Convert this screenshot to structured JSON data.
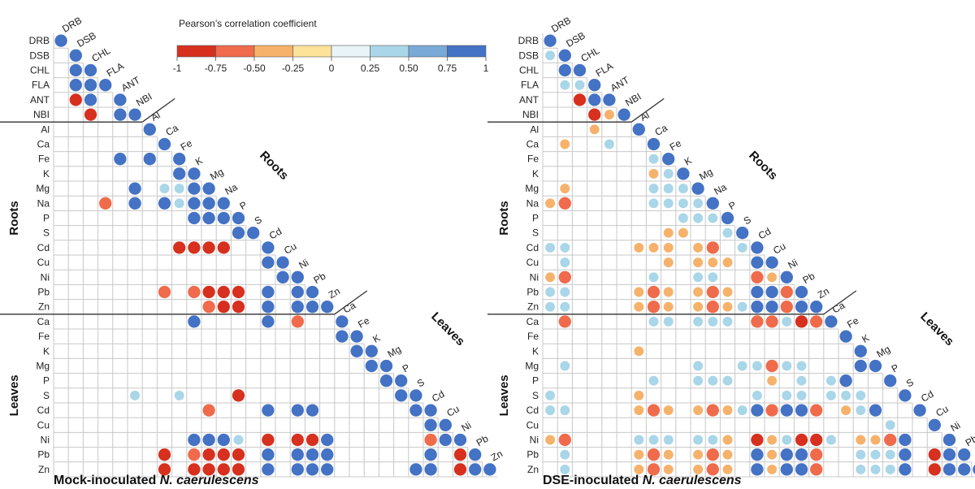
{
  "legend": {
    "title": "Pearson’s correlation coefficient",
    "ticks": [
      "-1",
      "-0.75",
      "-0.50",
      "-0.25",
      "0",
      "0.25",
      "0.50",
      "0.75",
      "1"
    ],
    "colors": [
      "#d7301f",
      "#ef6b4b",
      "#f6b26b",
      "#fde29a",
      "#e9f4f8",
      "#a9d6e8",
      "#79a9d6",
      "#4472c4"
    ]
  },
  "chart_data": [
    {
      "type": "heatmap",
      "caption": "Mock-inoculated N. caerulescens",
      "caption_plain": "Mock-inoculated ",
      "caption_italic": "N. caerulescens",
      "variables": [
        "DRB",
        "DSB",
        "CHL",
        "FLA",
        "ANT",
        "NBI",
        "Al",
        "Ca",
        "Fe",
        "K",
        "Mg",
        "Na",
        "P",
        "S",
        "Cd",
        "Cu",
        "Ni",
        "Pb",
        "Zn",
        "Ca",
        "Fe",
        "K",
        "Mg",
        "P",
        "S",
        "Cd",
        "Cu",
        "Ni",
        "Pb",
        "Zn"
      ],
      "groups": [
        "Roots",
        "Roots",
        "Leaves",
        "Leaves"
      ],
      "circles": [
        [
          2,
          1,
          0.9
        ],
        [
          3,
          1,
          0.9
        ],
        [
          3,
          2,
          0.9
        ],
        [
          4,
          1,
          -0.9
        ],
        [
          4,
          2,
          0.9
        ],
        [
          5,
          2,
          -0.9
        ],
        [
          5,
          4,
          0.9
        ],
        [
          8,
          4,
          0.9
        ],
        [
          8,
          6,
          0.9
        ],
        [
          9,
          8,
          0.9
        ],
        [
          10,
          5,
          0.85
        ],
        [
          10,
          7,
          0.4
        ],
        [
          10,
          8,
          0.45
        ],
        [
          10,
          9,
          0.85
        ],
        [
          11,
          3,
          -0.6
        ],
        [
          11,
          5,
          0.85
        ],
        [
          11,
          7,
          0.85
        ],
        [
          11,
          8,
          0.4
        ],
        [
          11,
          9,
          0.85
        ],
        [
          11,
          10,
          0.85
        ],
        [
          12,
          9,
          0.85
        ],
        [
          12,
          10,
          0.85
        ],
        [
          12,
          11,
          0.85
        ],
        [
          13,
          12,
          0.85
        ],
        [
          14,
          8,
          -0.9
        ],
        [
          14,
          9,
          -0.9
        ],
        [
          14,
          10,
          -0.9
        ],
        [
          14,
          11,
          -0.9
        ],
        [
          15,
          14,
          0.85
        ],
        [
          16,
          15,
          0.85
        ],
        [
          17,
          7,
          -0.6
        ],
        [
          17,
          9,
          -0.6
        ],
        [
          17,
          10,
          -0.9
        ],
        [
          17,
          11,
          -0.9
        ],
        [
          17,
          12,
          -0.9
        ],
        [
          17,
          14,
          0.85
        ],
        [
          17,
          16,
          0.85
        ],
        [
          18,
          10,
          -0.6
        ],
        [
          18,
          11,
          -0.9
        ],
        [
          18,
          12,
          -0.9
        ],
        [
          18,
          14,
          0.85
        ],
        [
          18,
          16,
          0.85
        ],
        [
          18,
          17,
          0.85
        ],
        [
          19,
          9,
          0.85
        ],
        [
          19,
          14,
          0.85
        ],
        [
          19,
          16,
          -0.6
        ],
        [
          20,
          19,
          0.85
        ],
        [
          21,
          20,
          0.85
        ],
        [
          22,
          21,
          0.85
        ],
        [
          23,
          22,
          0.85
        ],
        [
          24,
          5,
          0.3
        ],
        [
          24,
          8,
          0.3
        ],
        [
          24,
          12,
          -0.9
        ],
        [
          24,
          23,
          0.85
        ],
        [
          25,
          10,
          -0.6
        ],
        [
          25,
          14,
          0.85
        ],
        [
          25,
          16,
          0.85
        ],
        [
          25,
          17,
          0.85
        ],
        [
          25,
          24,
          0.85
        ],
        [
          26,
          25,
          0.85
        ],
        [
          27,
          9,
          0.85
        ],
        [
          27,
          10,
          0.85
        ],
        [
          27,
          11,
          0.85
        ],
        [
          27,
          12,
          0.45
        ],
        [
          27,
          14,
          -0.9
        ],
        [
          27,
          16,
          -0.9
        ],
        [
          27,
          17,
          -0.9
        ],
        [
          27,
          18,
          0.85
        ],
        [
          27,
          25,
          -0.6
        ],
        [
          27,
          26,
          0.85
        ],
        [
          28,
          7,
          -0.9
        ],
        [
          28,
          9,
          -0.6
        ],
        [
          28,
          10,
          -0.9
        ],
        [
          28,
          11,
          -0.9
        ],
        [
          28,
          12,
          -0.9
        ],
        [
          28,
          14,
          0.85
        ],
        [
          28,
          16,
          0.85
        ],
        [
          28,
          17,
          0.85
        ],
        [
          28,
          18,
          0.85
        ],
        [
          28,
          25,
          0.85
        ],
        [
          28,
          27,
          -0.9
        ],
        [
          29,
          7,
          -0.9
        ],
        [
          29,
          9,
          -0.9
        ],
        [
          29,
          10,
          -0.9
        ],
        [
          29,
          11,
          -0.9
        ],
        [
          29,
          12,
          -0.9
        ],
        [
          29,
          14,
          0.85
        ],
        [
          29,
          16,
          0.85
        ],
        [
          29,
          17,
          0.85
        ],
        [
          29,
          18,
          0.85
        ],
        [
          29,
          24,
          0.85
        ],
        [
          29,
          25,
          0.85
        ],
        [
          29,
          27,
          -0.9
        ],
        [
          29,
          28,
          0.85
        ]
      ]
    },
    {
      "type": "heatmap",
      "caption": "DSE-inoculated N. caerulescens",
      "caption_plain": "DSE-inoculated ",
      "caption_italic": "N. caerulescens",
      "variables": [
        "DRB",
        "DSB",
        "CHL",
        "FLA",
        "ANT",
        "NBI",
        "Al",
        "Ca",
        "Fe",
        "K",
        "Mg",
        "Na",
        "P",
        "S",
        "Cd",
        "Cu",
        "Ni",
        "Pb",
        "Zn",
        "Ca",
        "Fe",
        "K",
        "Mg",
        "P",
        "S",
        "Cd",
        "Cu",
        "Ni",
        "Pb",
        "Zn"
      ],
      "groups": [
        "Roots",
        "Roots",
        "Leaves",
        "Leaves"
      ],
      "circles": [
        [
          1,
          0,
          0.3
        ],
        [
          2,
          1,
          0.85
        ],
        [
          3,
          1,
          0.3
        ],
        [
          3,
          2,
          0.3
        ],
        [
          4,
          2,
          -0.9
        ],
        [
          4,
          3,
          0.85
        ],
        [
          5,
          3,
          -0.9
        ],
        [
          5,
          4,
          -0.35
        ],
        [
          6,
          3,
          -0.35
        ],
        [
          7,
          1,
          -0.35
        ],
        [
          7,
          4,
          0.3
        ],
        [
          8,
          7,
          0.45
        ],
        [
          9,
          7,
          -0.35
        ],
        [
          9,
          8,
          0.45
        ],
        [
          10,
          1,
          -0.35
        ],
        [
          10,
          7,
          0.3
        ],
        [
          10,
          8,
          0.3
        ],
        [
          10,
          9,
          0.3
        ],
        [
          11,
          0,
          -0.35
        ],
        [
          11,
          1,
          -0.6
        ],
        [
          11,
          7,
          0.45
        ],
        [
          11,
          8,
          0.3
        ],
        [
          11,
          9,
          0.3
        ],
        [
          11,
          10,
          0.45
        ],
        [
          12,
          9,
          0.45
        ],
        [
          12,
          10,
          0.3
        ],
        [
          12,
          11,
          0.45
        ],
        [
          13,
          8,
          -0.35
        ],
        [
          13,
          9,
          -0.35
        ],
        [
          13,
          12,
          0.3
        ],
        [
          14,
          0,
          0.45
        ],
        [
          14,
          1,
          0.45
        ],
        [
          14,
          6,
          -0.35
        ],
        [
          14,
          7,
          -0.35
        ],
        [
          14,
          8,
          -0.35
        ],
        [
          14,
          10,
          -0.35
        ],
        [
          14,
          11,
          -0.6
        ],
        [
          14,
          13,
          0.3
        ],
        [
          15,
          1,
          0.3
        ],
        [
          15,
          8,
          -0.35
        ],
        [
          15,
          10,
          -0.35
        ],
        [
          15,
          11,
          -0.35
        ],
        [
          15,
          12,
          -0.35
        ],
        [
          15,
          14,
          0.85
        ],
        [
          16,
          0,
          -0.35
        ],
        [
          16,
          1,
          -0.6
        ],
        [
          16,
          7,
          0.3
        ],
        [
          16,
          10,
          0.3
        ],
        [
          16,
          11,
          0.3
        ],
        [
          16,
          14,
          -0.6
        ],
        [
          16,
          15,
          -0.35
        ],
        [
          17,
          0,
          0.3
        ],
        [
          17,
          1,
          0.45
        ],
        [
          17,
          6,
          -0.35
        ],
        [
          17,
          7,
          -0.6
        ],
        [
          17,
          8,
          -0.35
        ],
        [
          17,
          10,
          -0.35
        ],
        [
          17,
          11,
          -0.6
        ],
        [
          17,
          12,
          -0.35
        ],
        [
          17,
          14,
          0.85
        ],
        [
          17,
          15,
          0.85
        ],
        [
          17,
          16,
          -0.6
        ],
        [
          18,
          0,
          0.45
        ],
        [
          18,
          1,
          0.45
        ],
        [
          18,
          6,
          -0.35
        ],
        [
          18,
          7,
          -0.6
        ],
        [
          18,
          8,
          -0.35
        ],
        [
          18,
          10,
          -0.35
        ],
        [
          18,
          11,
          -0.6
        ],
        [
          18,
          12,
          -0.35
        ],
        [
          18,
          13,
          0.3
        ],
        [
          18,
          14,
          0.85
        ],
        [
          18,
          15,
          0.85
        ],
        [
          18,
          16,
          -0.6
        ],
        [
          18,
          17,
          0.85
        ],
        [
          19,
          1,
          -0.6
        ],
        [
          19,
          7,
          0.45
        ],
        [
          19,
          8,
          0.45
        ],
        [
          19,
          10,
          0.3
        ],
        [
          19,
          11,
          0.45
        ],
        [
          19,
          12,
          0.3
        ],
        [
          19,
          14,
          -0.6
        ],
        [
          19,
          15,
          -0.6
        ],
        [
          19,
          16,
          0.3
        ],
        [
          19,
          17,
          -0.9
        ],
        [
          19,
          18,
          -0.6
        ],
        [
          21,
          6,
          -0.35
        ],
        [
          22,
          1,
          0.3
        ],
        [
          22,
          10,
          0.3
        ],
        [
          22,
          13,
          0.3
        ],
        [
          22,
          14,
          0.3
        ],
        [
          22,
          15,
          -0.6
        ],
        [
          22,
          16,
          0.3
        ],
        [
          22,
          17,
          0.3
        ],
        [
          22,
          21,
          0.85
        ],
        [
          23,
          7,
          0.3
        ],
        [
          23,
          10,
          0.3
        ],
        [
          23,
          11,
          0.3
        ],
        [
          23,
          12,
          0.3
        ],
        [
          23,
          15,
          -0.35
        ],
        [
          23,
          17,
          0.3
        ],
        [
          23,
          19,
          0.45
        ],
        [
          23,
          20,
          0.85
        ],
        [
          24,
          0,
          0.3
        ],
        [
          24,
          6,
          -0.35
        ],
        [
          24,
          14,
          0.3
        ],
        [
          24,
          16,
          0.3
        ],
        [
          24,
          17,
          0.3
        ],
        [
          24,
          19,
          0.45
        ],
        [
          24,
          20,
          0.3
        ],
        [
          24,
          21,
          0.3
        ],
        [
          25,
          0,
          0.3
        ],
        [
          25,
          1,
          0.45
        ],
        [
          25,
          6,
          -0.35
        ],
        [
          25,
          7,
          -0.6
        ],
        [
          25,
          8,
          -0.35
        ],
        [
          25,
          10,
          -0.35
        ],
        [
          25,
          11,
          -0.6
        ],
        [
          25,
          12,
          -0.35
        ],
        [
          25,
          13,
          0.3
        ],
        [
          25,
          14,
          0.85
        ],
        [
          25,
          15,
          -0.6
        ],
        [
          25,
          16,
          0.85
        ],
        [
          25,
          17,
          0.85
        ],
        [
          25,
          18,
          -0.6
        ],
        [
          25,
          20,
          -0.35
        ],
        [
          25,
          21,
          0.3
        ],
        [
          25,
          22,
          0.85
        ],
        [
          26,
          23,
          0.3
        ],
        [
          27,
          0,
          -0.35
        ],
        [
          27,
          1,
          -0.6
        ],
        [
          27,
          6,
          0.3
        ],
        [
          27,
          7,
          0.3
        ],
        [
          27,
          8,
          0.45
        ],
        [
          27,
          10,
          0.3
        ],
        [
          27,
          11,
          0.45
        ],
        [
          27,
          12,
          -0.35
        ],
        [
          27,
          14,
          -0.9
        ],
        [
          27,
          15,
          -0.35
        ],
        [
          27,
          16,
          0.45
        ],
        [
          27,
          17,
          -0.9
        ],
        [
          27,
          18,
          -0.9
        ],
        [
          27,
          19,
          0.3
        ],
        [
          27,
          21,
          -0.35
        ],
        [
          27,
          22,
          -0.35
        ],
        [
          27,
          23,
          -0.6
        ],
        [
          27,
          24,
          0.85
        ],
        [
          28,
          1,
          0.3
        ],
        [
          28,
          6,
          -0.35
        ],
        [
          28,
          7,
          -0.6
        ],
        [
          28,
          8,
          -0.35
        ],
        [
          28,
          10,
          -0.35
        ],
        [
          28,
          11,
          -0.6
        ],
        [
          28,
          12,
          -0.35
        ],
        [
          28,
          14,
          0.85
        ],
        [
          28,
          15,
          -0.35
        ],
        [
          28,
          16,
          0.85
        ],
        [
          28,
          17,
          0.85
        ],
        [
          28,
          18,
          -0.6
        ],
        [
          28,
          21,
          0.3
        ],
        [
          28,
          22,
          0.3
        ],
        [
          28,
          23,
          0.45
        ],
        [
          28,
          24,
          0.85
        ],
        [
          28,
          26,
          -0.9
        ],
        [
          28,
          27,
          0.85
        ],
        [
          29,
          1,
          0.3
        ],
        [
          29,
          6,
          -0.35
        ],
        [
          29,
          7,
          -0.6
        ],
        [
          29,
          8,
          -0.35
        ],
        [
          29,
          10,
          -0.35
        ],
        [
          29,
          11,
          -0.6
        ],
        [
          29,
          12,
          -0.35
        ],
        [
          29,
          14,
          0.85
        ],
        [
          29,
          15,
          -0.35
        ],
        [
          29,
          16,
          0.85
        ],
        [
          29,
          17,
          0.85
        ],
        [
          29,
          18,
          -0.6
        ],
        [
          29,
          21,
          0.3
        ],
        [
          29,
          22,
          0.3
        ],
        [
          29,
          23,
          0.45
        ],
        [
          29,
          24,
          0.85
        ],
        [
          29,
          26,
          -0.9
        ],
        [
          29,
          27,
          0.85
        ],
        [
          29,
          28,
          0.85
        ]
      ]
    }
  ]
}
